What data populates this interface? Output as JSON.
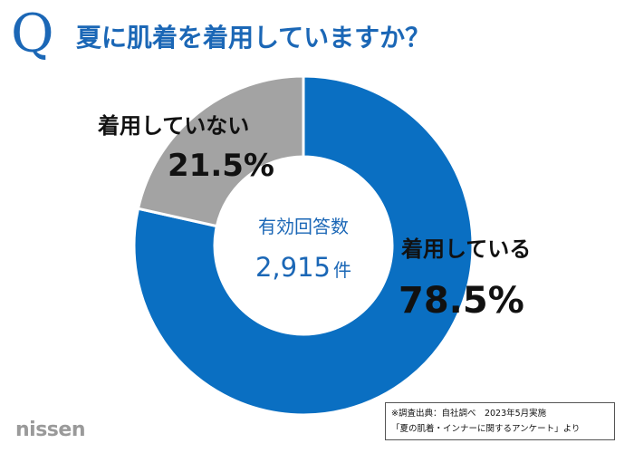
{
  "header": {
    "q_letter": "Q",
    "question": "夏に肌着を着用していますか？"
  },
  "chart_data": {
    "type": "pie",
    "title": "夏に肌着を着用していますか？",
    "center_label": "有効回答数",
    "respondents": "2,915",
    "respondents_unit": "件",
    "slices": [
      {
        "label": "着用している",
        "value": 78.5,
        "display": "78.5%",
        "color": "#0a6fc2"
      },
      {
        "label": "着用していない",
        "value": 21.5,
        "display": "21.5%",
        "color": "#a3a3a3"
      }
    ]
  },
  "source": {
    "line1": "※調査出典：自社調べ　2023年5月実施",
    "line2": "「夏の肌着・インナーに関するアンケート」より"
  },
  "logo": {
    "text": "nissen"
  }
}
